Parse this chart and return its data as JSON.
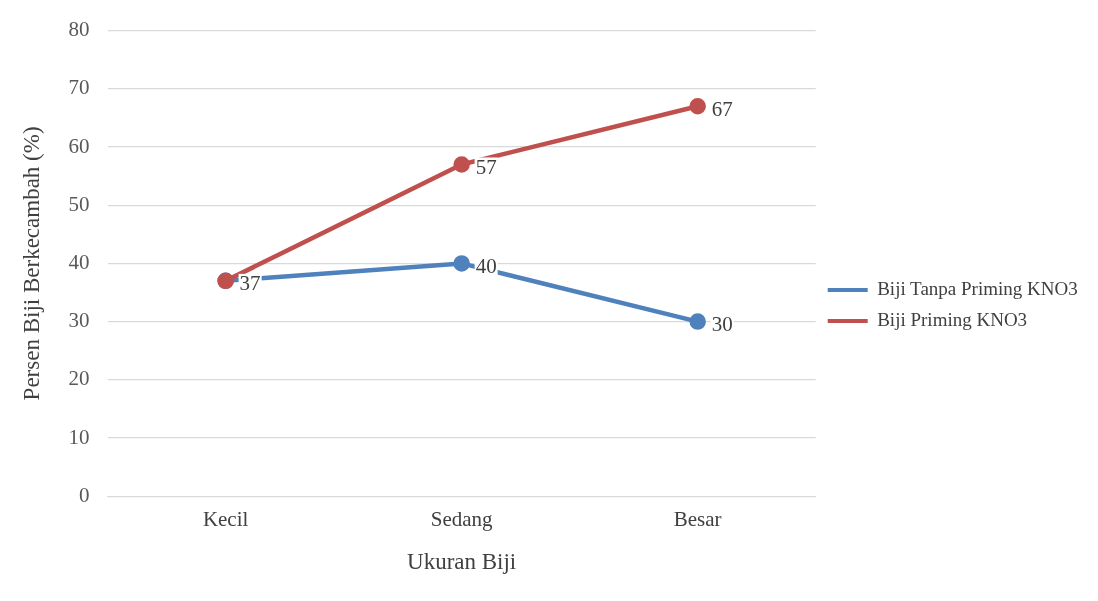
{
  "chart_data": {
    "type": "line",
    "xlabel": "Ukuran Biji",
    "ylabel": "Persen Biji Berkecambah (%)",
    "categories": [
      "Kecil",
      "Sedang",
      "Besar"
    ],
    "series": [
      {
        "name": "Biji Tanpa Priming KNO3",
        "color": "#4f81bd",
        "values": [
          37,
          40,
          30
        ],
        "value_labels": [
          "37",
          "40",
          "30"
        ]
      },
      {
        "name": "Biji Priming KNO3",
        "color": "#c0504d",
        "values": [
          37,
          57,
          67
        ],
        "value_labels": [
          null,
          "57",
          "67"
        ]
      }
    ],
    "ylim": [
      0,
      80
    ],
    "yticks": [
      0,
      10,
      20,
      30,
      40,
      50,
      60,
      70,
      80
    ],
    "grid": "y",
    "legend": "right",
    "marker": "circle",
    "line_style": "solid"
  }
}
